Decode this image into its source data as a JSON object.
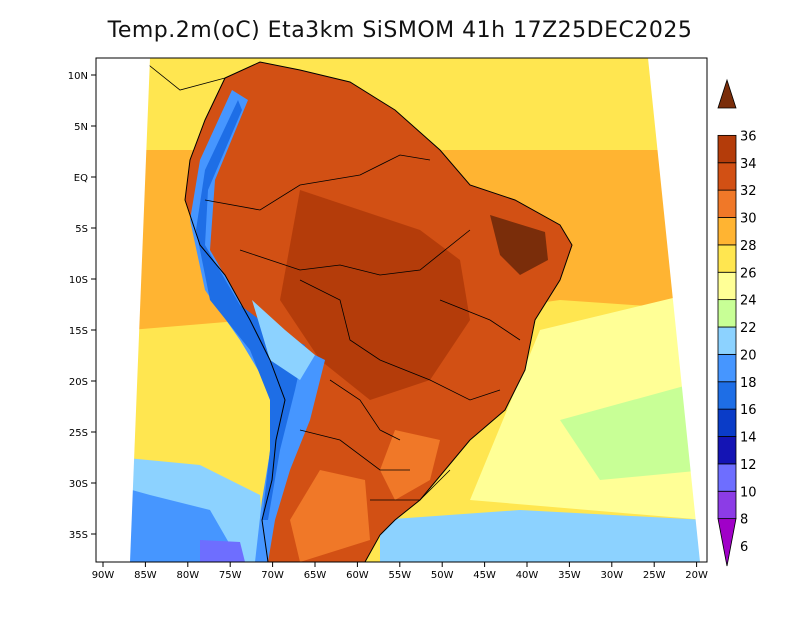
{
  "map": {
    "title": "Temp.2m(oC) Eta3km SiSMOM 41h 17Z25DEC2025",
    "lat_labels": [
      "10N",
      "5N",
      "EQ",
      "5S",
      "10S",
      "15S",
      "20S",
      "25S",
      "30S",
      "35S"
    ],
    "lon_labels": [
      "90W",
      "85W",
      "80W",
      "75W",
      "70W",
      "65W",
      "60W",
      "55W",
      "50W",
      "45W",
      "40W",
      "35W",
      "30W",
      "25W",
      "20W"
    ],
    "colorbar": {
      "values": [
        "6",
        "8",
        "10",
        "12",
        "14",
        "16",
        "18",
        "20",
        "22",
        "24",
        "26",
        "28",
        "30",
        "32",
        "34",
        "36"
      ],
      "colors": [
        "#a000c8",
        "#8c3ce6",
        "#6e6eff",
        "#1414b4",
        "#0a3cc8",
        "#1e6ee6",
        "#4696ff",
        "#8cd2ff",
        "#c8ff96",
        "#ffff96",
        "#ffe650",
        "#ffb432",
        "#f07828",
        "#d25014",
        "#b43c0a",
        "#7a2d0a"
      ]
    }
  }
}
